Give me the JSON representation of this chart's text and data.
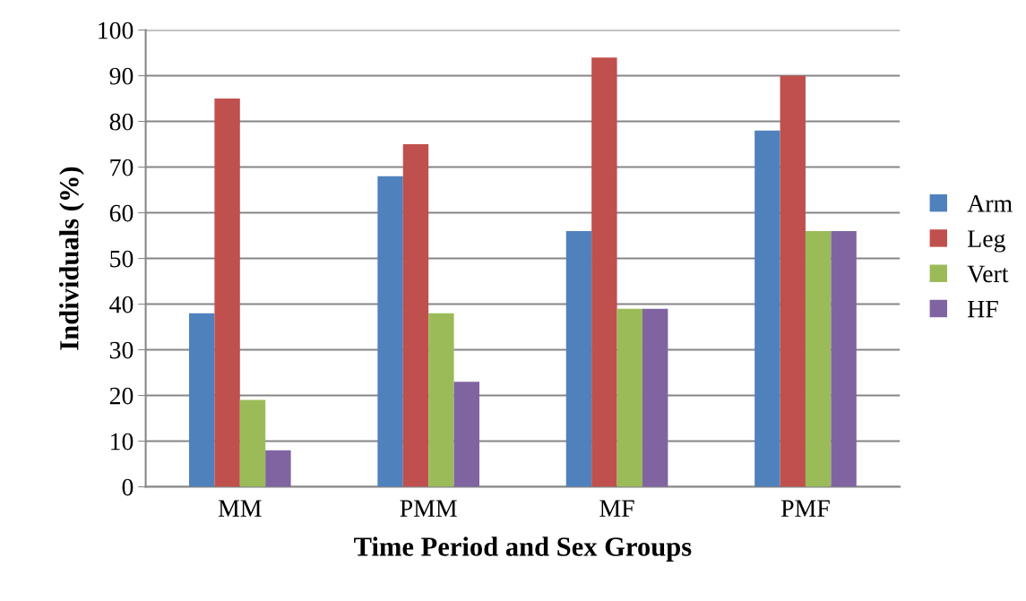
{
  "chart_data": {
    "type": "bar",
    "xlabel": "Time Period and Sex Groups",
    "ylabel": "Individuals (%)",
    "categories": [
      "MM",
      "PMM",
      "MF",
      "PMF"
    ],
    "series": [
      {
        "name": "Arm",
        "color": "#4f81bd",
        "values": [
          38,
          68,
          56,
          78
        ]
      },
      {
        "name": "Leg",
        "color": "#c0504d",
        "values": [
          85,
          75,
          94,
          90
        ]
      },
      {
        "name": "Vert",
        "color": "#9bbb59",
        "values": [
          19,
          38,
          39,
          56
        ]
      },
      {
        "name": "HF",
        "color": "#8064a2",
        "values": [
          8,
          23,
          39,
          56
        ]
      }
    ],
    "ylim": [
      0,
      100
    ],
    "yticks": [
      0,
      10,
      20,
      30,
      40,
      50,
      60,
      70,
      80,
      90,
      100
    ],
    "grid": "y",
    "legend": "right"
  }
}
